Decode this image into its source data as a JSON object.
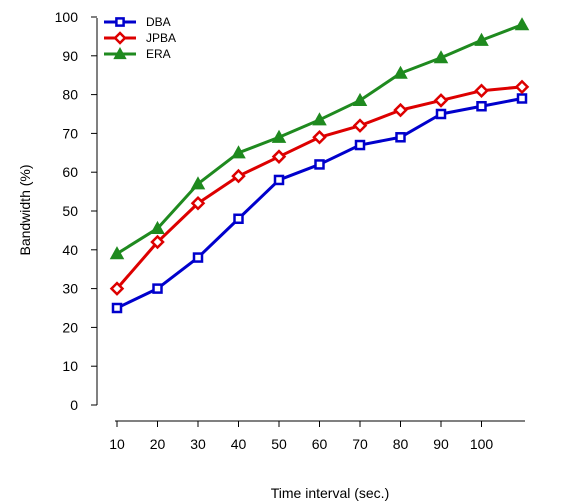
{
  "chart_data": {
    "type": "line",
    "title": "",
    "xlabel": "Time interval (sec.)",
    "ylabel": "Bandwidth (%)",
    "x": [
      10,
      20,
      30,
      40,
      50,
      60,
      70,
      80,
      90,
      100,
      110
    ],
    "xticks": [
      "10",
      "20",
      "30",
      "40",
      "50",
      "60",
      "70",
      "80",
      "90",
      "100"
    ],
    "yticks": [
      "0",
      "10",
      "20",
      "30",
      "40",
      "50",
      "60",
      "70",
      "80",
      "90",
      "100"
    ],
    "xlim": [
      10,
      110
    ],
    "ylim": [
      0,
      100
    ],
    "grid": false,
    "legend_position": "top-left",
    "series": [
      {
        "name": "DBA",
        "color": "#0000cc",
        "marker": "square",
        "values": [
          25,
          30,
          38,
          48,
          58,
          62,
          67,
          69,
          75,
          77,
          79
        ]
      },
      {
        "name": "JPBA",
        "color": "#dd0000",
        "marker": "diamond",
        "values": [
          30,
          42,
          52,
          59,
          64,
          69,
          72,
          76,
          78.5,
          81,
          82
        ]
      },
      {
        "name": "ERA",
        "color": "#1f8a1f",
        "marker": "triangle",
        "values": [
          39,
          45.5,
          57,
          65,
          69,
          73.5,
          78.5,
          85.5,
          89.5,
          94,
          98
        ]
      }
    ]
  }
}
